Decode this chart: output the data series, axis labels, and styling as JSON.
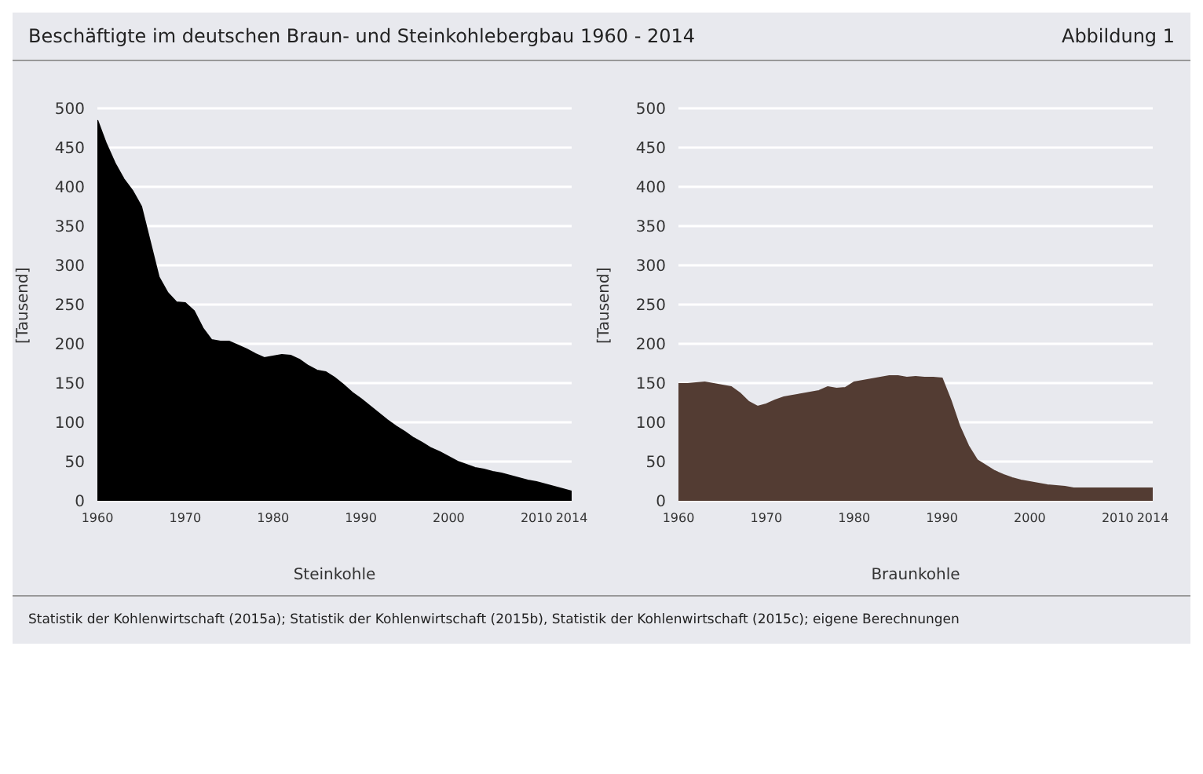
{
  "chart_data": [
    {
      "type": "area",
      "title": "Beschäftigte im deutschen Braun- und Steinkohlebergbau 1960 - 2014",
      "annotations": [
        "Abbildung 1",
        "Statistik der Kohlenwirtschaft (2015a); Statistik der Kohlenwirtschaft (2015b), Statistik der Kohlenwirtschaft (2015c); eigene Berechnungen"
      ],
      "xlabel": "Steinkohle",
      "ylabel": "[Tausend]",
      "x": [
        1960,
        1961,
        1962,
        1963,
        1964,
        1965,
        1966,
        1967,
        1968,
        1969,
        1970,
        1971,
        1972,
        1973,
        1974,
        1975,
        1976,
        1977,
        1978,
        1979,
        1980,
        1981,
        1982,
        1983,
        1984,
        1985,
        1986,
        1987,
        1988,
        1989,
        1990,
        1991,
        1992,
        1993,
        1994,
        1995,
        1996,
        1997,
        1998,
        1999,
        2000,
        2001,
        2002,
        2003,
        2004,
        2005,
        2006,
        2007,
        2008,
        2009,
        2010,
        2011,
        2012,
        2013,
        2014
      ],
      "series": [
        {
          "color": "#000000",
          "values": [
            485,
            455,
            430,
            410,
            395,
            375,
            330,
            285,
            265,
            253,
            252,
            242,
            220,
            205,
            203,
            203,
            198,
            193,
            187,
            182,
            184,
            186,
            185,
            180,
            172,
            166,
            164,
            157,
            148,
            138,
            130,
            121,
            112,
            103,
            95,
            88,
            80,
            74,
            67,
            62,
            56,
            50,
            46,
            42,
            40,
            37,
            35,
            32,
            29,
            26,
            24,
            21,
            18,
            15,
            12
          ]
        }
      ],
      "xlim": [
        1960,
        2014
      ],
      "xticks": [
        1960,
        1970,
        1980,
        1990,
        2000,
        2010,
        2014
      ],
      "ylim": [
        0,
        500
      ],
      "yticks": [
        0,
        50,
        100,
        150,
        200,
        250,
        300,
        350,
        400,
        450,
        500
      ],
      "grid": "y"
    },
    {
      "type": "area",
      "xlabel": "Braunkohle",
      "ylabel": "[Tausend]",
      "x": [
        1960,
        1961,
        1962,
        1963,
        1964,
        1965,
        1966,
        1967,
        1968,
        1969,
        1970,
        1971,
        1972,
        1973,
        1974,
        1975,
        1976,
        1977,
        1978,
        1979,
        1980,
        1981,
        1982,
        1983,
        1984,
        1985,
        1986,
        1987,
        1988,
        1989,
        1990,
        1991,
        1992,
        1993,
        1994,
        1995,
        1996,
        1997,
        1998,
        1999,
        2000,
        2001,
        2002,
        2003,
        2004,
        2005,
        2006,
        2007,
        2008,
        2009,
        2010,
        2011,
        2012,
        2013,
        2014
      ],
      "series": [
        {
          "color": "#533c33",
          "values": [
            149,
            149,
            150,
            151,
            149,
            147,
            145,
            137,
            126,
            120,
            123,
            128,
            132,
            134,
            136,
            138,
            140,
            145,
            143,
            144,
            151,
            153,
            155,
            157,
            159,
            159,
            157,
            158,
            157,
            157,
            156,
            128,
            95,
            70,
            52,
            45,
            38,
            33,
            29,
            26,
            24,
            22,
            20,
            19,
            18,
            16,
            16,
            16,
            16,
            16,
            16,
            16,
            16,
            16,
            16
          ]
        }
      ],
      "xlim": [
        1960,
        2014
      ],
      "xticks": [
        1960,
        1970,
        1980,
        1990,
        2000,
        2010,
        2014
      ],
      "ylim": [
        0,
        500
      ],
      "yticks": [
        0,
        50,
        100,
        150,
        200,
        250,
        300,
        350,
        400,
        450,
        500
      ],
      "grid": "y"
    }
  ]
}
